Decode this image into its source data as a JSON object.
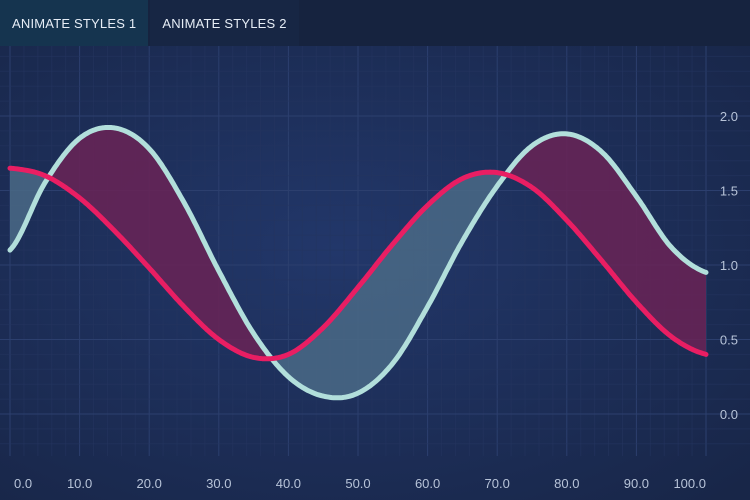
{
  "toolbar": {
    "tabs": [
      {
        "label": "ANIMATE STYLES 1",
        "active": true
      },
      {
        "label": "ANIMATE STYLES 2",
        "active": false
      }
    ]
  },
  "colors": {
    "background": "#1c2b52",
    "series_a_line": "#e91e63",
    "series_b_line": "#b2dfdb",
    "fill_a_above": "#6a2356",
    "fill_b_above": "#4a6a86"
  },
  "chart_data": {
    "type": "line",
    "title": "",
    "xlabel": "",
    "ylabel": "",
    "xlim": [
      0,
      100
    ],
    "ylim": [
      -0.3,
      2.4
    ],
    "x_ticks": [
      "0.0",
      "10.0",
      "20.0",
      "30.0",
      "40.0",
      "50.0",
      "60.0",
      "70.0",
      "80.0",
      "90.0",
      "100.0"
    ],
    "y_ticks": [
      "0.0",
      "0.5",
      "1.0",
      "1.5",
      "2.0"
    ],
    "y_axis_position": "right",
    "grid": true,
    "band_fill": true,
    "series": [
      {
        "line_color": "#e91e63",
        "x": [
          0,
          5,
          10,
          15,
          20,
          25,
          30,
          35,
          40,
          45,
          50,
          55,
          60,
          65,
          70,
          75,
          80,
          85,
          90,
          95,
          100
        ],
        "values": [
          1.65,
          1.6,
          1.45,
          1.23,
          0.98,
          0.72,
          0.5,
          0.38,
          0.4,
          0.58,
          0.85,
          1.14,
          1.4,
          1.58,
          1.62,
          1.52,
          1.3,
          1.03,
          0.75,
          0.52,
          0.4
        ]
      },
      {
        "line_color": "#b2dfdb",
        "x": [
          0,
          5,
          10,
          15,
          20,
          25,
          30,
          35,
          40,
          45,
          50,
          55,
          60,
          65,
          70,
          75,
          80,
          85,
          90,
          95,
          100
        ],
        "values": [
          1.1,
          1.55,
          1.85,
          1.92,
          1.78,
          1.42,
          0.96,
          0.54,
          0.25,
          0.12,
          0.14,
          0.34,
          0.72,
          1.16,
          1.53,
          1.8,
          1.88,
          1.76,
          1.46,
          1.12,
          0.95
        ]
      }
    ]
  }
}
